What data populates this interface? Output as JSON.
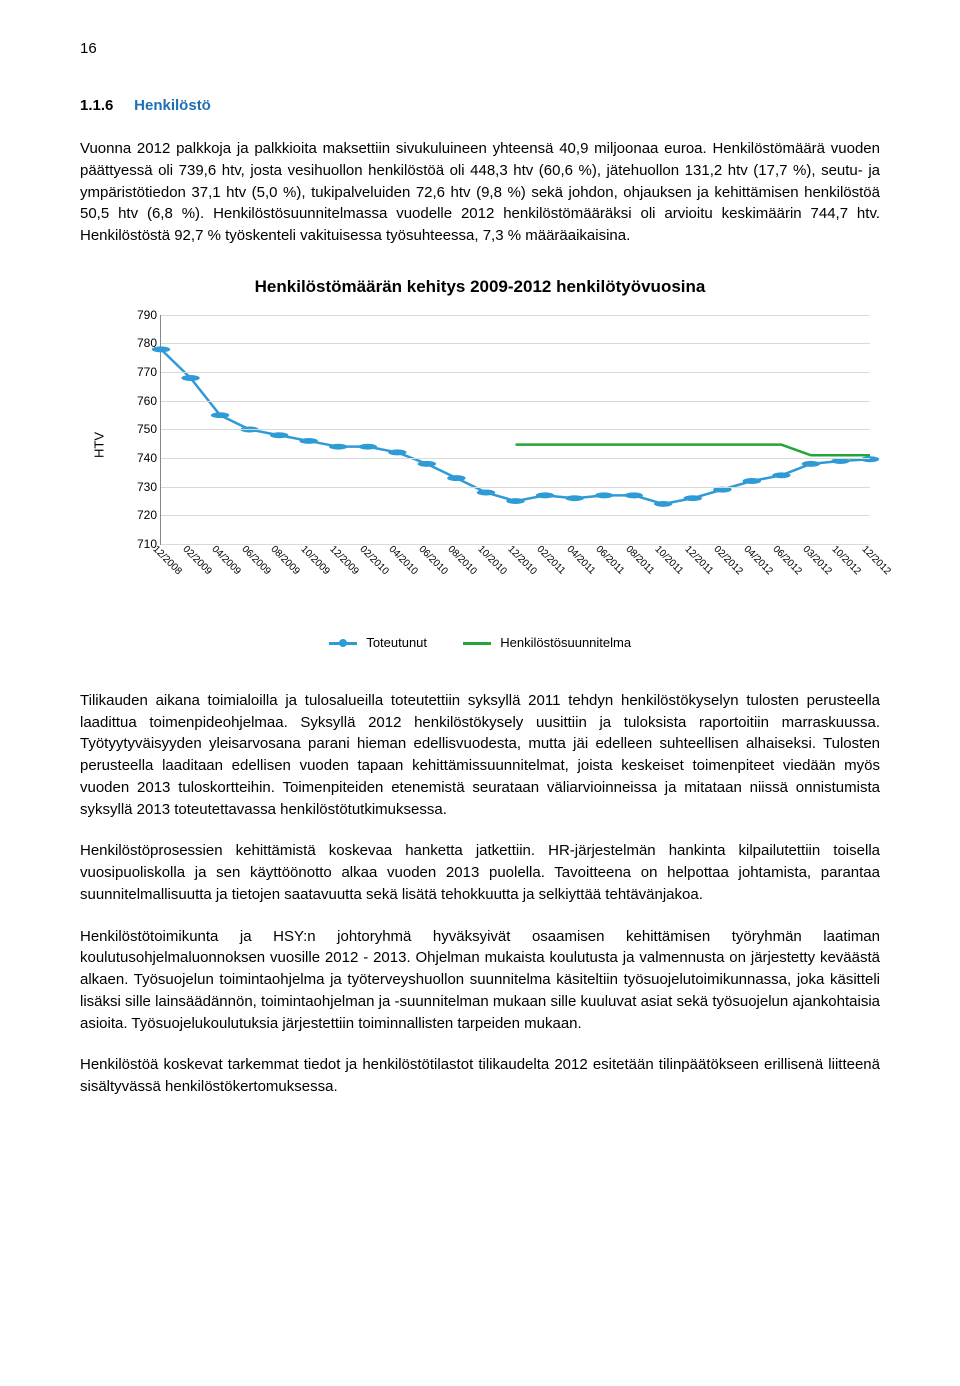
{
  "page_number": "16",
  "heading": {
    "number": "1.1.6",
    "title": "Henkilöstö",
    "title_color": "#1f6fb2"
  },
  "para1": "Vuonna 2012 palkkoja ja palkkioita maksettiin sivukuluineen yhteensä 40,9 miljoonaa euroa. Henkilöstömäärä vuoden päättyessä oli 739,6 htv, josta vesihuollon henkilöstöä oli 448,3 htv (60,6 %), jätehuollon 131,2 htv (17,7 %), seutu- ja ympäristötiedon 37,1 htv (5,0 %), tukipalveluiden 72,6 htv (9,8 %) sekä johdon, ohjauksen ja kehittämisen henkilöstöä 50,5 htv (6,8 %). Henkilöstösuunnitelmassa vuodelle 2012 henkilöstömääräksi oli arvioitu keskimäärin 744,7 htv. Henkilöstöstä 92,7 % työskenteli vakituisessa työsuhteessa, 7,3 % määräaikaisina.",
  "para2": "Tilikauden aikana toimialoilla ja tulosalueilla toteutettiin syksyllä 2011 tehdyn henkilöstökyselyn tulosten perusteella laadittua toimenpideohjelmaa. Syksyllä 2012 henkilöstökysely uusittiin ja tuloksista raportoitiin marraskuussa. Työtyytyväisyyden yleisarvosana parani hieman edellisvuodesta, mutta jäi edelleen suhteellisen alhaiseksi. Tulosten perusteella laaditaan edellisen vuoden tapaan kehittämissuunnitelmat, joista keskeiset toimenpiteet viedään myös vuoden 2013 tuloskortteihin. Toimenpiteiden etenemistä seurataan väliarvioinneissa ja mitataan niissä onnistumista syksyllä 2013 toteutettavassa henkilöstötutkimuksessa.",
  "para3": "Henkilöstöprosessien kehittämistä koskevaa hanketta jatkettiin. HR-järjestelmän hankinta kilpailutettiin toisella vuosipuoliskolla ja sen käyttöönotto alkaa vuoden 2013 puolella. Tavoitteena on helpottaa johtamista, parantaa suunnitelmallisuutta ja tietojen saatavuutta sekä lisätä tehokkuutta ja selkiyttää tehtävänjakoa.",
  "para4": "Henkilöstötoimikunta ja HSY:n johtoryhmä hyväksyivät osaamisen kehittämisen työryhmän laatiman koulutusohjelmaluonnoksen vuosille 2012 - 2013. Ohjelman mukaista koulutusta ja valmennusta on järjestetty keväästä alkaen. Työsuojelun toimintaohjelma ja työterveyshuollon suunnitelma käsiteltiin työsuojelutoimikunnassa, joka käsitteli lisäksi sille lainsäädännön, toimintaohjelman ja -suunnitelman mukaan sille kuuluvat asiat sekä työsuojelun ajankohtaisia asioita. Työsuojelukoulutuksia järjestettiin toiminnallisten tarpeiden mukaan.",
  "para5": "Henkilöstöä koskevat tarkemmat tiedot ja henkilöstötilastot tilikaudelta 2012 esitetään tilinpäätökseen erillisenä liitteenä sisältyvässä henkilöstökertomuksessa.",
  "chart": {
    "title": "Henkilöstömäärän kehitys 2009-2012 henkilötyövuosina",
    "y_axis_label": "HTV",
    "y_min": 710,
    "y_max": 790,
    "y_tick_step": 10,
    "x_labels": [
      "12/2008",
      "02/2009",
      "04/2009",
      "06/2009",
      "08/2009",
      "10/2009",
      "12/2009",
      "02/2010",
      "04/2010",
      "06/2010",
      "08/2010",
      "10/2010",
      "12/2010",
      "02/2011",
      "04/2011",
      "06/2011",
      "08/2011",
      "10/2011",
      "12/2011",
      "02/2012",
      "04/2012",
      "06/2012",
      "03/2012",
      "10/2012",
      "12/2012"
    ],
    "series": {
      "toteutunut": {
        "label": "Toteutunut",
        "color": "#2e9bd6",
        "marker_color": "#2e9bd6",
        "line_width": 2.5,
        "marker_radius": 4,
        "values": [
          778,
          768,
          755,
          750,
          748,
          746,
          744,
          744,
          742,
          738,
          733,
          728,
          725,
          727,
          726,
          727,
          727,
          724,
          726,
          729,
          732,
          734,
          738,
          739,
          739.6
        ]
      },
      "suunnitelma": {
        "label": "Henkilöstösuunnitelma",
        "color": "#23a53a",
        "line_width": 2.5,
        "values": [
          null,
          null,
          null,
          null,
          null,
          null,
          null,
          null,
          null,
          null,
          null,
          null,
          744.7,
          744.7,
          744.7,
          744.7,
          744.7,
          744.7,
          744.7,
          744.7,
          744.7,
          744.7,
          741,
          741,
          741
        ]
      }
    },
    "background_color": "#ffffff",
    "grid_color": "#d9d9d9",
    "axis_color": "#888888",
    "tick_font_size": 12
  }
}
